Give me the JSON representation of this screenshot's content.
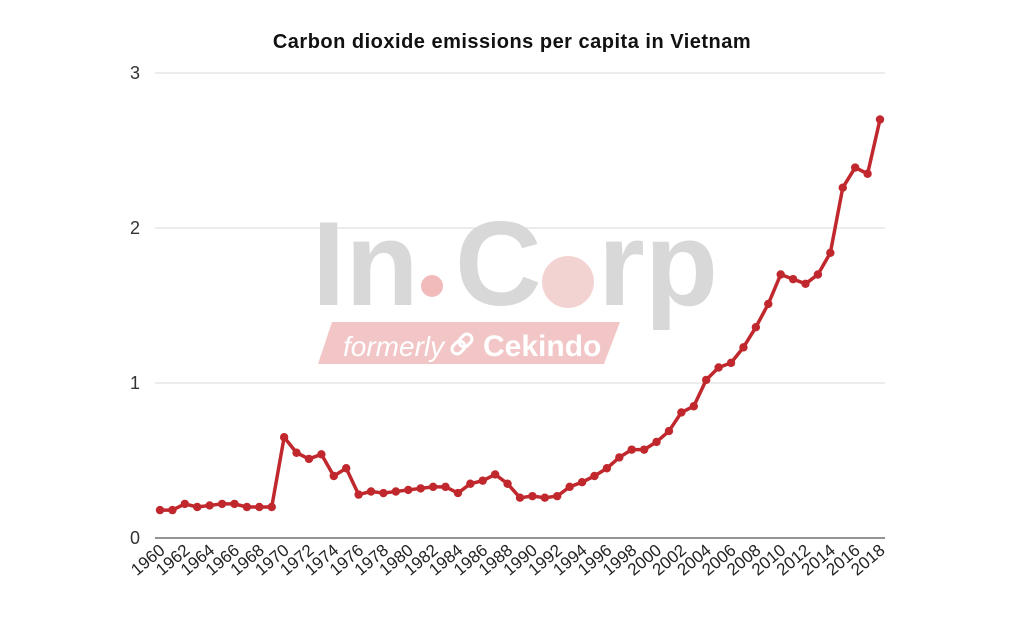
{
  "watermark": {
    "brand_left": "In",
    "brand_right": "C",
    "brand_end": "rp",
    "tagline_prefix": "formerly",
    "tagline_brand": "Cekindo"
  },
  "colors": {
    "line": "#c0282d",
    "grid": "#d9d9d9",
    "axis": "#555555",
    "watermark_band": "#f2c4c4"
  },
  "chart_data": {
    "type": "line",
    "title": "Carbon dioxide emissions per capita in Vietnam",
    "xlabel": "",
    "ylabel": "",
    "ylim": [
      0,
      3
    ],
    "yticks": [
      0,
      1,
      2,
      3
    ],
    "grid": true,
    "x": [
      1960,
      1961,
      1962,
      1963,
      1964,
      1965,
      1966,
      1967,
      1968,
      1969,
      1970,
      1971,
      1972,
      1973,
      1974,
      1975,
      1976,
      1977,
      1978,
      1979,
      1980,
      1981,
      1982,
      1983,
      1984,
      1985,
      1986,
      1987,
      1988,
      1989,
      1990,
      1991,
      1992,
      1993,
      1994,
      1995,
      1996,
      1997,
      1998,
      1999,
      2000,
      2001,
      2002,
      2003,
      2004,
      2005,
      2006,
      2007,
      2008,
      2009,
      2010,
      2011,
      2012,
      2013,
      2014,
      2015,
      2016,
      2017,
      2018
    ],
    "xtick_labels": [
      "1960",
      "1962",
      "1964",
      "1966",
      "1968",
      "1970",
      "1972",
      "1974",
      "1976",
      "1978",
      "1980",
      "1982",
      "1984",
      "1986",
      "1988",
      "1990",
      "1992",
      "1994",
      "1996",
      "1998",
      "2000",
      "2002",
      "2004",
      "2006",
      "2008",
      "2010",
      "2012",
      "2014",
      "2016",
      "2018"
    ],
    "series": [
      {
        "values": [
          0.18,
          0.18,
          0.22,
          0.2,
          0.21,
          0.22,
          0.22,
          0.2,
          0.2,
          0.2,
          0.65,
          0.55,
          0.51,
          0.54,
          0.4,
          0.45,
          0.28,
          0.3,
          0.29,
          0.3,
          0.31,
          0.32,
          0.33,
          0.33,
          0.29,
          0.35,
          0.37,
          0.41,
          0.35,
          0.26,
          0.27,
          0.26,
          0.27,
          0.33,
          0.36,
          0.4,
          0.45,
          0.52,
          0.57,
          0.57,
          0.62,
          0.69,
          0.81,
          0.85,
          1.02,
          1.1,
          1.13,
          1.23,
          1.36,
          1.51,
          1.7,
          1.67,
          1.64,
          1.7,
          1.84,
          2.26,
          2.39,
          2.35,
          2.7
        ]
      }
    ]
  }
}
